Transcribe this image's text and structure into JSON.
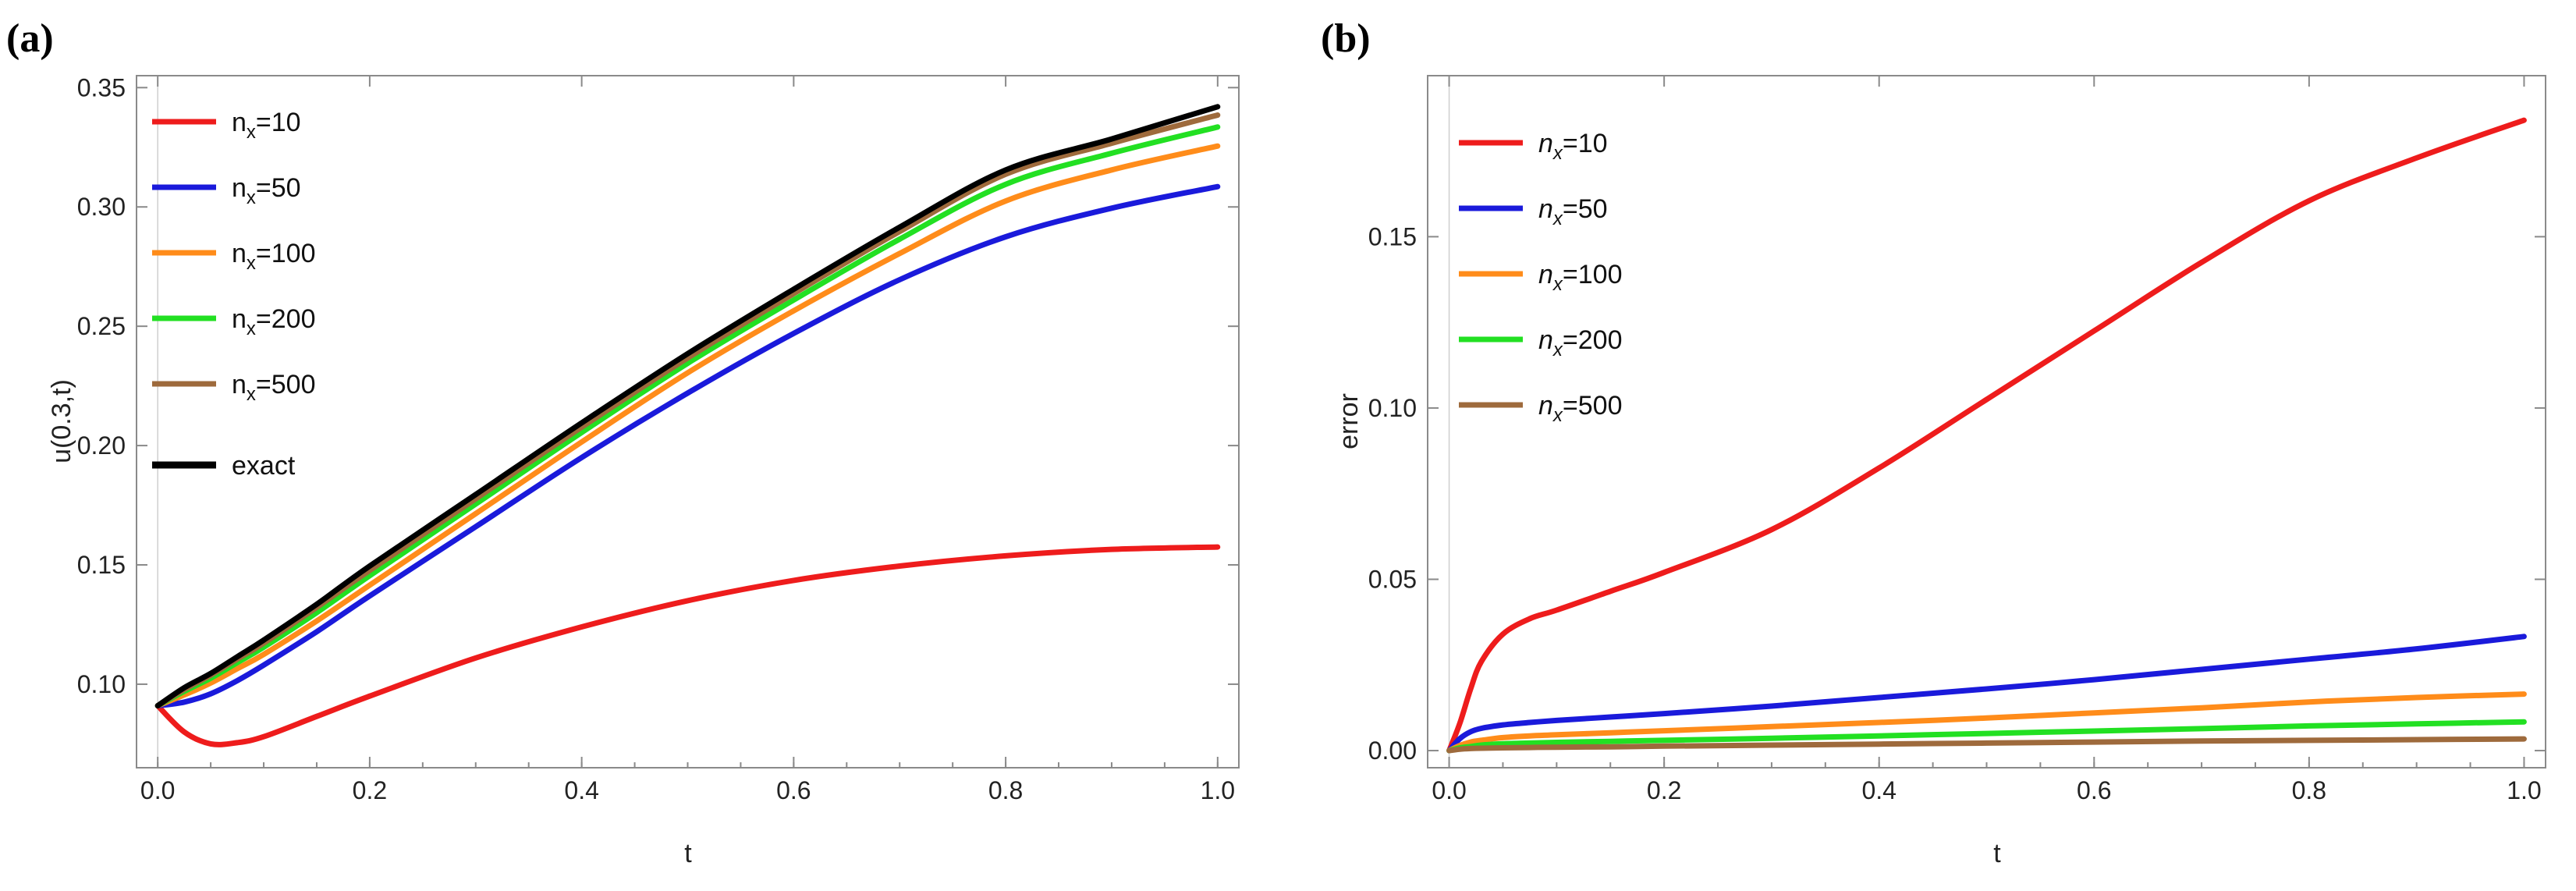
{
  "chart_data": [
    {
      "panel": "(a)",
      "type": "line",
      "title": "",
      "xlabel": "t",
      "ylabel": "u(0.3,t)",
      "xlim": [
        -0.02,
        1.02
      ],
      "ylim": [
        0.065,
        0.355
      ],
      "xticks": [
        "0.0",
        "0.2",
        "0.4",
        "0.6",
        "0.8",
        "1.0"
      ],
      "yticks": [
        "0.10",
        "0.15",
        "0.20",
        "0.25",
        "0.30",
        "0.35"
      ],
      "legend_position": "top-left",
      "x": [
        0,
        0.025,
        0.05,
        0.075,
        0.1,
        0.15,
        0.2,
        0.3,
        0.4,
        0.5,
        0.6,
        0.7,
        0.8,
        0.9,
        1.0
      ],
      "series": [
        {
          "name": "n",
          "sub": "x",
          "suffix": "=10",
          "color": "#ee1c1c",
          "values": [
            0.091,
            0.08,
            0.075,
            0.0755,
            0.078,
            0.0865,
            0.095,
            0.111,
            0.124,
            0.135,
            0.1435,
            0.1495,
            0.1538,
            0.1565,
            0.1575
          ]
        },
        {
          "name": "n",
          "sub": "x",
          "suffix": "=50",
          "color": "#1a1adb",
          "values": [
            0.091,
            0.0925,
            0.096,
            0.1015,
            0.108,
            0.122,
            0.137,
            0.166,
            0.195,
            0.222,
            0.247,
            0.2695,
            0.2875,
            0.2995,
            0.3085
          ]
        },
        {
          "name": "n",
          "sub": "x",
          "suffix": "=100",
          "color": "#ff8c1a",
          "values": [
            0.091,
            0.0955,
            0.1005,
            0.1065,
            0.1125,
            0.1265,
            0.1415,
            0.1715,
            0.2015,
            0.2305,
            0.2565,
            0.2805,
            0.3025,
            0.3155,
            0.3255
          ]
        },
        {
          "name": "n",
          "sub": "x",
          "suffix": "=200",
          "color": "#22e022",
          "values": [
            0.091,
            0.097,
            0.1025,
            0.109,
            0.1155,
            0.13,
            0.1455,
            0.1755,
            0.2055,
            0.2345,
            0.261,
            0.2865,
            0.3095,
            0.3225,
            0.3335
          ]
        },
        {
          "name": "n",
          "sub": "x",
          "suffix": "=500",
          "color": "#9e6a3c",
          "values": [
            0.091,
            0.0978,
            0.1038,
            0.1105,
            0.1172,
            0.1322,
            0.1477,
            0.1777,
            0.2077,
            0.2367,
            0.2637,
            0.2897,
            0.3137,
            0.3267,
            0.3385
          ]
        },
        {
          "name": "exact",
          "sub": "",
          "suffix": "",
          "color": "#000000",
          "values": [
            0.091,
            0.0985,
            0.1045,
            0.1115,
            0.1185,
            0.1335,
            0.1495,
            0.1795,
            0.2095,
            0.2385,
            0.2655,
            0.2915,
            0.3155,
            0.3285,
            0.342
          ]
        }
      ]
    },
    {
      "panel": "(b)",
      "type": "line",
      "title": "",
      "xlabel": "t",
      "ylabel": "error",
      "xlim": [
        -0.02,
        1.02
      ],
      "ylim": [
        -0.005,
        0.197
      ],
      "xticks": [
        "0.0",
        "0.2",
        "0.4",
        "0.6",
        "0.8",
        "1.0"
      ],
      "yticks": [
        "0.00",
        "0.05",
        "0.10",
        "0.15"
      ],
      "legend_position": "top-left",
      "x": [
        0,
        0.01,
        0.02,
        0.03,
        0.05,
        0.075,
        0.1,
        0.15,
        0.2,
        0.3,
        0.4,
        0.5,
        0.6,
        0.7,
        0.8,
        0.9,
        1.0
      ],
      "series": [
        {
          "name": "n",
          "sub": "x",
          "suffix": "=10",
          "color": "#ee1c1c",
          "values": [
            0,
            0.008,
            0.018,
            0.026,
            0.034,
            0.0385,
            0.041,
            0.0465,
            0.052,
            0.0645,
            0.0825,
            0.1025,
            0.1225,
            0.1425,
            0.1605,
            0.173,
            0.184
          ]
        },
        {
          "name": "n",
          "sub": "x",
          "suffix": "=50",
          "color": "#1a1adb",
          "values": [
            0,
            0.0035,
            0.0055,
            0.0065,
            0.0075,
            0.0082,
            0.0088,
            0.0098,
            0.0108,
            0.013,
            0.0155,
            0.018,
            0.0207,
            0.0237,
            0.0267,
            0.0297,
            0.0333
          ]
        },
        {
          "name": "n",
          "sub": "x",
          "suffix": "=100",
          "color": "#ff8c1a",
          "values": [
            0,
            0.0015,
            0.0025,
            0.003,
            0.0038,
            0.0043,
            0.0046,
            0.0052,
            0.0058,
            0.007,
            0.0082,
            0.0095,
            0.011,
            0.0125,
            0.0142,
            0.0155,
            0.0165
          ]
        },
        {
          "name": "n",
          "sub": "x",
          "suffix": "=200",
          "color": "#22e022",
          "values": [
            0,
            0.0008,
            0.0012,
            0.0016,
            0.002,
            0.0022,
            0.0024,
            0.0027,
            0.003,
            0.0036,
            0.0043,
            0.005,
            0.0057,
            0.0064,
            0.0072,
            0.0078,
            0.0084
          ]
        },
        {
          "name": "n",
          "sub": "x",
          "suffix": "=500",
          "color": "#9e6a3c",
          "values": [
            0,
            0.0004,
            0.0006,
            0.0007,
            0.0008,
            0.0009,
            0.001,
            0.0011,
            0.0013,
            0.0016,
            0.0019,
            0.0022,
            0.0025,
            0.0028,
            0.003,
            0.0032,
            0.0034
          ]
        }
      ]
    }
  ]
}
